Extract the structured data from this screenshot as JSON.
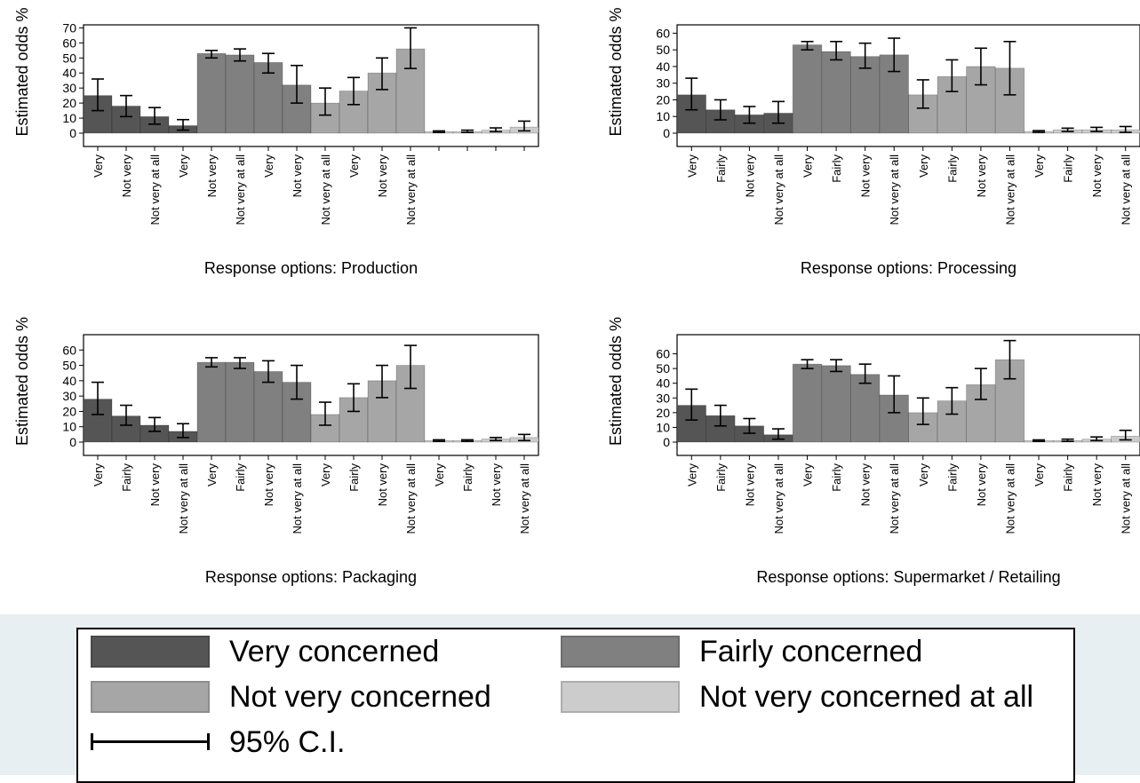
{
  "legend": {
    "very": {
      "label": "Very concerned",
      "color": "#555555"
    },
    "fairly": {
      "label": "Fairly concerned",
      "color": "#808080"
    },
    "notvery": {
      "label": "Not very concerned",
      "color": "#a6a6a6"
    },
    "notatall": {
      "label": "Not very concerned at all",
      "color": "#cccccc"
    },
    "ci": {
      "label": "95% C.I."
    }
  },
  "chart_data": [
    {
      "type": "bar",
      "xlabel": "Response options: Production",
      "ylabel": "Estimated odds %",
      "ylim": [
        0,
        70
      ],
      "yticks": [
        0,
        10,
        20,
        30,
        40,
        50,
        60,
        70
      ],
      "legend_position": "bottom",
      "tick_labels": [
        "Very",
        "Not very",
        "Not very at all",
        "Very",
        "Not very",
        "Not very at all",
        "Very",
        "Not very",
        "Not very at all",
        "Very",
        "Not very",
        "Not very at all",
        "",
        "",
        "",
        ""
      ],
      "series": [
        {
          "group": "very",
          "values": [
            25,
            18,
            11,
            5
          ],
          "ci_low": [
            15,
            11,
            6,
            2
          ],
          "ci_high": [
            36,
            25,
            17,
            9
          ]
        },
        {
          "group": "fairly",
          "values": [
            53,
            52,
            47,
            32
          ],
          "ci_low": [
            50,
            48,
            40,
            20
          ],
          "ci_high": [
            55,
            56,
            53,
            45
          ]
        },
        {
          "group": "notvery",
          "values": [
            20,
            28,
            40,
            56
          ],
          "ci_low": [
            12,
            19,
            29,
            43
          ],
          "ci_high": [
            30,
            37,
            50,
            70
          ]
        },
        {
          "group": "notatall",
          "values": [
            1,
            1,
            2,
            4
          ],
          "ci_low": [
            0.5,
            0.5,
            1,
            1.5
          ],
          "ci_high": [
            1.5,
            2,
            3.5,
            8
          ]
        }
      ]
    },
    {
      "type": "bar",
      "xlabel": "Response options: Processing",
      "ylabel": "Estimated odds %",
      "ylim": [
        0,
        60
      ],
      "yticks": [
        0,
        10,
        20,
        30,
        40,
        50,
        60
      ],
      "legend_position": "bottom",
      "tick_labels": [
        "Very",
        "Fairly",
        "Not very",
        "Not very at all",
        "Very",
        "Fairly",
        "Not very",
        "Not very at all",
        "Very",
        "Fairly",
        "Not very",
        "Not very at all",
        "Very",
        "Fairly",
        "Not very",
        "Not very at all"
      ],
      "series": [
        {
          "group": "very",
          "values": [
            23,
            14,
            11,
            12
          ],
          "ci_low": [
            14,
            8,
            6,
            6
          ],
          "ci_high": [
            33,
            20,
            16,
            19
          ]
        },
        {
          "group": "fairly",
          "values": [
            53,
            49,
            46,
            47
          ],
          "ci_low": [
            50,
            44,
            39,
            37
          ],
          "ci_high": [
            55,
            55,
            54,
            57
          ]
        },
        {
          "group": "notvery",
          "values": [
            23,
            34,
            40,
            39
          ],
          "ci_low": [
            15,
            25,
            29,
            23
          ],
          "ci_high": [
            32,
            44,
            51,
            55
          ]
        },
        {
          "group": "notatall",
          "values": [
            1,
            2,
            2,
            2
          ],
          "ci_low": [
            0.5,
            1,
            1,
            0.5
          ],
          "ci_high": [
            1.5,
            3,
            3.5,
            4
          ]
        }
      ]
    },
    {
      "type": "bar",
      "xlabel": "Response options: Packaging",
      "ylabel": "Estimated odds %",
      "ylim": [
        0,
        60
      ],
      "yticks": [
        0,
        10,
        20,
        30,
        40,
        50,
        60
      ],
      "legend_position": "bottom",
      "tick_labels": [
        "Very",
        "Fairly",
        "Not very",
        "Not very at all",
        "Very",
        "Fairly",
        "Not very",
        "Not very at all",
        "Very",
        "Fairly",
        "Not very",
        "Not very at all",
        "Very",
        "Fairly",
        "Not very",
        "Not very at all"
      ],
      "series": [
        {
          "group": "very",
          "values": [
            28,
            17,
            11,
            7
          ],
          "ci_low": [
            18,
            11,
            7,
            3
          ],
          "ci_high": [
            39,
            24,
            16,
            12
          ]
        },
        {
          "group": "fairly",
          "values": [
            52,
            52,
            46,
            39
          ],
          "ci_low": [
            49,
            48,
            39,
            28
          ],
          "ci_high": [
            55,
            55,
            53,
            50
          ]
        },
        {
          "group": "notvery",
          "values": [
            18,
            29,
            40,
            50
          ],
          "ci_low": [
            11,
            20,
            29,
            35
          ],
          "ci_high": [
            26,
            38,
            50,
            63
          ]
        },
        {
          "group": "notatall",
          "values": [
            1,
            1,
            2,
            3
          ],
          "ci_low": [
            0.5,
            0.5,
            1,
            1
          ],
          "ci_high": [
            1.5,
            1.5,
            3,
            5
          ]
        }
      ]
    },
    {
      "type": "bar",
      "xlabel": "Response options: Supermarket / Retailing",
      "ylabel": "Estimated odds %",
      "ylim": [
        0,
        70
      ],
      "yticks": [
        0,
        10,
        20,
        30,
        40,
        50,
        60
      ],
      "legend_position": "bottom",
      "tick_labels": [
        "Very",
        "Fairly",
        "Not very",
        "Not very at all",
        "Very",
        "Fairly",
        "Not very",
        "Not very at all",
        "Very",
        "Fairly",
        "Not very",
        "Not very at all",
        "Very",
        "Fairly",
        "Not very",
        "Not very at all"
      ],
      "series": [
        {
          "group": "very",
          "values": [
            25,
            18,
            11,
            5
          ],
          "ci_low": [
            15,
            11,
            6,
            2
          ],
          "ci_high": [
            36,
            25,
            16,
            9
          ]
        },
        {
          "group": "fairly",
          "values": [
            53,
            52,
            46,
            32
          ],
          "ci_low": [
            50,
            48,
            40,
            20
          ],
          "ci_high": [
            56,
            56,
            53,
            45
          ]
        },
        {
          "group": "notvery",
          "values": [
            20,
            28,
            39,
            56
          ],
          "ci_low": [
            12,
            19,
            29,
            43
          ],
          "ci_high": [
            30,
            37,
            50,
            69
          ]
        },
        {
          "group": "notatall",
          "values": [
            1,
            1,
            2,
            4
          ],
          "ci_low": [
            0.5,
            0.5,
            1,
            1.5
          ],
          "ci_high": [
            1.5,
            2,
            3.5,
            8
          ]
        }
      ]
    }
  ]
}
